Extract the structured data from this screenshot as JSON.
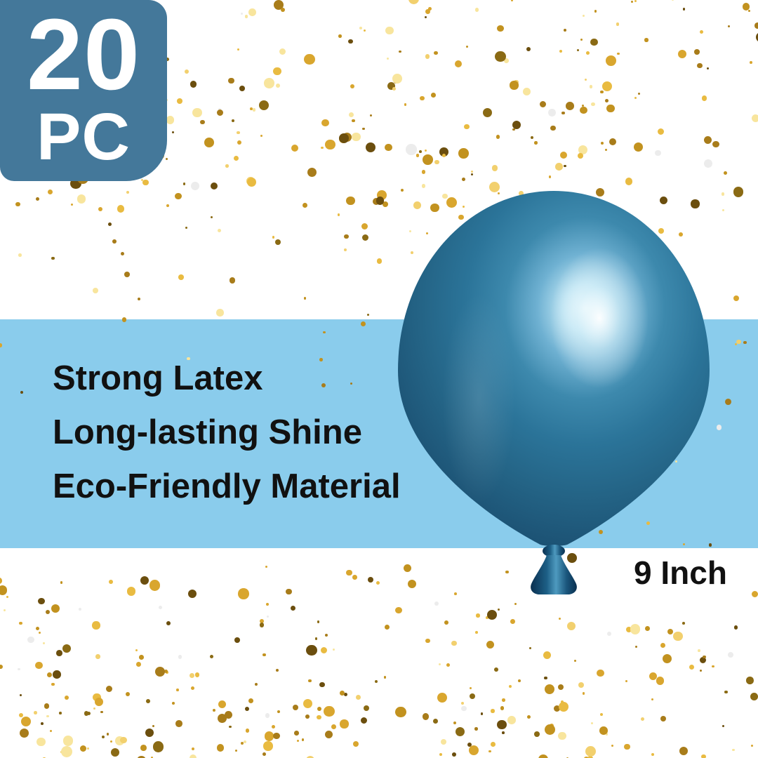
{
  "badge": {
    "count": "20",
    "unit": "PC"
  },
  "features": {
    "items": [
      {
        "label": "Strong Latex"
      },
      {
        "label": "Long-lasting Shine"
      },
      {
        "label": "Eco-Friendly Material"
      }
    ]
  },
  "size_label": "9 Inch",
  "balloon": {
    "description": "metallic chrome blue balloon",
    "body_color": "#2b7499"
  },
  "colors": {
    "badge_bg": "#44789a",
    "badge_text": "#ffffff",
    "band_bg": "#8accec",
    "text": "#111111",
    "gold_accent": "#d9a62e"
  },
  "confetti": {
    "palette": [
      "#6b4e0e",
      "#8a6a14",
      "#a87c1a",
      "#c2921f",
      "#d9a62e",
      "#e9bb41",
      "#f2d06e",
      "#f8e59d",
      "#ececec"
    ],
    "weights": [
      2,
      2,
      3,
      3,
      3,
      2,
      2,
      2,
      1
    ],
    "seed": 7
  }
}
